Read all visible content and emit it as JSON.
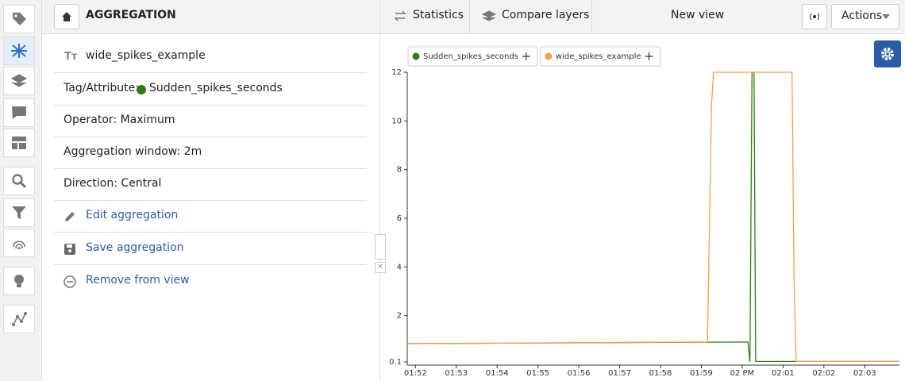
{
  "header": {
    "title": "AGGREGATION",
    "tabs": [
      "Statistics",
      "Compare layers"
    ],
    "view": "New view",
    "actions": "Actions"
  },
  "panel": {
    "name": "wide_spikes_example",
    "tag_label": "Tag/Attribute:",
    "tag_value": "Sudden_spikes_seconds",
    "operator": "Operator: Maximum",
    "window": "Aggregation window: 2m",
    "direction": "Direction: Central",
    "links": [
      "Edit aggregation",
      "Save aggregation",
      "Remove from view"
    ]
  },
  "chart_data": {
    "type": "line",
    "series": [
      {
        "name": "Sudden_spikes_seconds",
        "color": "#2e7d13",
        "x": [
          111.8,
          120.14,
          120.19,
          120.24,
          120.29,
          120.33,
          123.85
        ],
        "values": [
          0.85,
          0.92,
          0.1,
          12,
          12,
          0.12,
          0.12
        ]
      },
      {
        "name": "wide_spikes_example",
        "color": "#f7a14a",
        "x": [
          111.8,
          119.15,
          119.25,
          119.3,
          121.22,
          121.27,
          121.32,
          123.85
        ],
        "values": [
          0.85,
          0.92,
          10.7,
          12,
          12,
          3.5,
          0.12,
          0.12
        ]
      }
    ],
    "xlim": [
      111.8,
      123.85
    ],
    "xticks": [
      {
        "value": 112,
        "label": "01:52"
      },
      {
        "value": 113,
        "label": "01:53"
      },
      {
        "value": 114,
        "label": "01:54"
      },
      {
        "value": 115,
        "label": "01:55"
      },
      {
        "value": 116,
        "label": "01:56"
      },
      {
        "value": 117,
        "label": "01:57"
      },
      {
        "value": 118,
        "label": "01:58"
      },
      {
        "value": 119,
        "label": "01:59"
      },
      {
        "value": 120,
        "label": "02 PM"
      },
      {
        "value": 121,
        "label": "02:01"
      },
      {
        "value": 122,
        "label": "02:02"
      },
      {
        "value": 123,
        "label": "02:03"
      }
    ],
    "ylim": [
      0.1,
      12
    ],
    "yticks": [
      0.1,
      2,
      4,
      6,
      8,
      10,
      12
    ]
  }
}
